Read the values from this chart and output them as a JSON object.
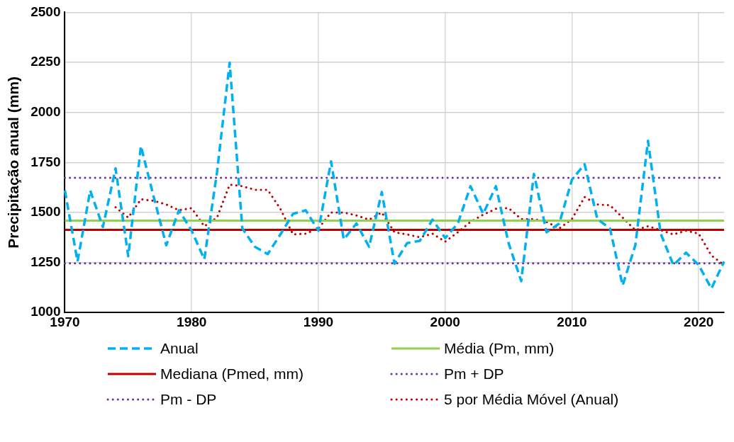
{
  "chart_data": {
    "type": "line",
    "ylabel": "Precipitação anual (mm)",
    "x": [
      1970,
      1971,
      1972,
      1973,
      1974,
      1975,
      1976,
      1977,
      1978,
      1979,
      1980,
      1981,
      1982,
      1983,
      1984,
      1985,
      1986,
      1987,
      1988,
      1989,
      1990,
      1991,
      1992,
      1993,
      1994,
      1995,
      1996,
      1997,
      1998,
      1999,
      2000,
      2001,
      2002,
      2003,
      2004,
      2005,
      2006,
      2007,
      2008,
      2009,
      2010,
      2011,
      2012,
      2013,
      2014,
      2015,
      2016,
      2017,
      2018,
      2019,
      2020,
      2021,
      2022
    ],
    "series": [
      {
        "name": "Anual",
        "color": "#00b0f0",
        "line_style": "dashed",
        "values": [
          1610,
          1255,
          1610,
          1427,
          1720,
          1281,
          1832,
          1580,
          1336,
          1511,
          1409,
          1266,
          1700,
          2248,
          1420,
          1328,
          1292,
          1390,
          1493,
          1511,
          1409,
          1755,
          1365,
          1445,
          1328,
          1602,
          1244,
          1347,
          1358,
          1464,
          1372,
          1445,
          1631,
          1493,
          1631,
          1347,
          1157,
          1693,
          1401,
          1445,
          1664,
          1741,
          1467,
          1420,
          1135,
          1336,
          1858,
          1394,
          1237,
          1299,
          1237,
          1120,
          1255
        ]
      },
      {
        "name": "Média (Pm, mm)",
        "color": "#92d050",
        "line_style": "solid",
        "values": [
          1459,
          1459,
          1459,
          1459,
          1459,
          1459,
          1459,
          1459,
          1459,
          1459,
          1459,
          1459,
          1459,
          1459,
          1459,
          1459,
          1459,
          1459,
          1459,
          1459,
          1459,
          1459,
          1459,
          1459,
          1459,
          1459,
          1459,
          1459,
          1459,
          1459,
          1459,
          1459,
          1459,
          1459,
          1459,
          1459,
          1459,
          1459,
          1459,
          1459,
          1459,
          1459,
          1459,
          1459,
          1459,
          1459,
          1459,
          1459,
          1459,
          1459,
          1459,
          1459,
          1459
        ]
      },
      {
        "name": "Mediana (Pmed, mm)",
        "color": "#c00000",
        "line_style": "solid",
        "values": [
          1413,
          1413,
          1413,
          1413,
          1413,
          1413,
          1413,
          1413,
          1413,
          1413,
          1413,
          1413,
          1413,
          1413,
          1413,
          1413,
          1413,
          1413,
          1413,
          1413,
          1413,
          1413,
          1413,
          1413,
          1413,
          1413,
          1413,
          1413,
          1413,
          1413,
          1413,
          1413,
          1413,
          1413,
          1413,
          1413,
          1413,
          1413,
          1413,
          1413,
          1413,
          1413,
          1413,
          1413,
          1413,
          1413,
          1413,
          1413,
          1413,
          1413,
          1413,
          1413,
          1413
        ]
      },
      {
        "name": "Pm + DP",
        "color": "#7030a0",
        "line_style": "dotted",
        "values": [
          1673,
          1673,
          1673,
          1673,
          1673,
          1673,
          1673,
          1673,
          1673,
          1673,
          1673,
          1673,
          1673,
          1673,
          1673,
          1673,
          1673,
          1673,
          1673,
          1673,
          1673,
          1673,
          1673,
          1673,
          1673,
          1673,
          1673,
          1673,
          1673,
          1673,
          1673,
          1673,
          1673,
          1673,
          1673,
          1673,
          1673,
          1673,
          1673,
          1673,
          1673,
          1673,
          1673,
          1673,
          1673,
          1673,
          1673,
          1673,
          1673,
          1673,
          1673,
          1673,
          1673
        ]
      },
      {
        "name": "Pm - DP",
        "color": "#7030a0",
        "line_style": "dotted",
        "values": [
          1246,
          1246,
          1246,
          1246,
          1246,
          1246,
          1246,
          1246,
          1246,
          1246,
          1246,
          1246,
          1246,
          1246,
          1246,
          1246,
          1246,
          1246,
          1246,
          1246,
          1246,
          1246,
          1246,
          1246,
          1246,
          1246,
          1246,
          1246,
          1246,
          1246,
          1246,
          1246,
          1246,
          1246,
          1246,
          1246,
          1246,
          1246,
          1246,
          1246,
          1246,
          1246,
          1246,
          1246,
          1246,
          1246,
          1246,
          1246,
          1246,
          1246,
          1246,
          1246,
          1246
        ]
      },
      {
        "name": "5 por Média Móvel (Anual)",
        "color": "#c00000",
        "line_style": "dotted",
        "values": [
          null,
          null,
          null,
          null,
          1526,
          1474,
          1566,
          1558,
          1540,
          1511,
          1522,
          1431,
          1474,
          1639,
          1631,
          1613,
          1613,
          1518,
          1390,
          1394,
          1420,
          1500,
          1500,
          1485,
          1464,
          1500,
          1401,
          1390,
          1376,
          1394,
          1354,
          1401,
          1453,
          1489,
          1518,
          1522,
          1467,
          1467,
          1453,
          1420,
          1467,
          1577,
          1540,
          1536,
          1474,
          1412,
          1431,
          1412,
          1390,
          1409,
          1394,
          1285,
          1237
        ]
      }
    ],
    "xlim": [
      1970,
      2022
    ],
    "xticks": [
      1970,
      1980,
      1990,
      2000,
      2010,
      2020
    ],
    "ylim": [
      1000,
      2500
    ],
    "yticks": [
      1000,
      1250,
      1500,
      1750,
      2000,
      2250,
      2500
    ],
    "grid": true,
    "legend": "bottom",
    "marker": "none"
  }
}
